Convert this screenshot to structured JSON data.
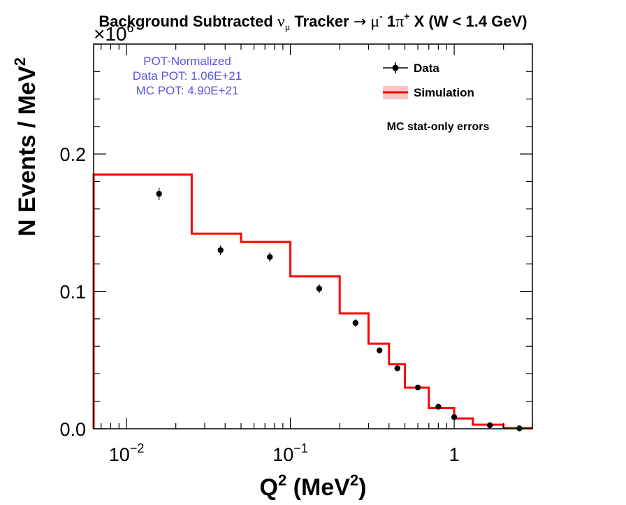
{
  "chart_data": {
    "type": "line",
    "title_prefix": "Background Subtracted ",
    "title_nu": "ν",
    "title_nu_sub": "μ",
    "title_mid": " Tracker ",
    "title_arrow": "→",
    "title_mu": " μ",
    "title_mu_sup": "-",
    "title_one": " 1",
    "title_pi": "π",
    "title_pi_sup": "+",
    "title_suffix": " X  (W < 1.4 GeV)",
    "ylabel_main": "N Events / MeV",
    "ylabel_sup": "2",
    "xlabel_main": "Q",
    "xlabel_sup": "2",
    "xlabel_unit_open": " (MeV",
    "xlabel_unit_sup": "2",
    "xlabel_unit_close": ")",
    "y_multiplier_base": "×10",
    "y_multiplier_exp": "6",
    "x_scale": "log",
    "xlim": [
      0.0063,
      3.0
    ],
    "ylim": [
      0.0,
      0.28
    ],
    "x_ticks": [
      {
        "value": 0.01,
        "base": "10",
        "exp": "−2"
      },
      {
        "value": 0.1,
        "base": "10",
        "exp": "−1"
      },
      {
        "value": 1,
        "base": "1",
        "exp": ""
      }
    ],
    "y_ticks": [
      {
        "value": 0.0,
        "label": "0.0"
      },
      {
        "value": 0.1,
        "label": "0.1"
      },
      {
        "value": 0.2,
        "label": "0.2"
      }
    ],
    "annotations": [
      "POT-Normalized",
      "Data POT: 1.06E+21",
      "MC POT: 4.90E+21"
    ],
    "annotation_color": "#5555dd",
    "note": "MC stat-only errors",
    "legend_position": "top-right",
    "series": [
      {
        "name": "Data",
        "kind": "points",
        "color": "#000000",
        "x": [
          0.0158,
          0.0375,
          0.075,
          0.15,
          0.25,
          0.35,
          0.45,
          0.6,
          0.8,
          1.0,
          1.65,
          2.5
        ],
        "y": [
          0.171,
          0.13,
          0.125,
          0.102,
          0.077,
          0.057,
          0.044,
          0.03,
          0.016,
          0.0085,
          0.0025,
          0.0003
        ],
        "yerr": [
          0.0045,
          0.0035,
          0.0035,
          0.0032,
          0.0027,
          0.0024,
          0.002,
          0.0016,
          0.0012,
          0.0009,
          0.0005,
          0.0002
        ]
      },
      {
        "name": "Simulation",
        "kind": "histogram",
        "color": "#ff0000",
        "band_color": "#f7c6c6",
        "bin_edges": [
          0.0063,
          0.025,
          0.05,
          0.1,
          0.2,
          0.3,
          0.4,
          0.5,
          0.7,
          1.0,
          1.3,
          2.0,
          3.0
        ],
        "values": [
          0.185,
          0.142,
          0.136,
          0.111,
          0.084,
          0.062,
          0.047,
          0.03,
          0.015,
          0.0075,
          0.003,
          0.0005
        ]
      }
    ]
  }
}
